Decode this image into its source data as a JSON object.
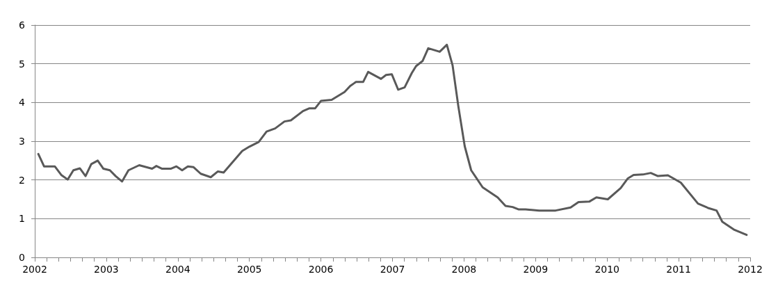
{
  "chart_data": {
    "type": "line",
    "xlim": [
      2002,
      2012
    ],
    "xticks": [
      2002,
      2003,
      2004,
      2005,
      2006,
      2007,
      2008,
      2009,
      2010,
      2011,
      2012
    ],
    "ylim": [
      0,
      6
    ],
    "yticks": [
      0,
      1,
      2,
      3,
      4,
      5,
      6
    ],
    "grid": "y",
    "marker": "none",
    "line_style": "solid",
    "series": [
      {
        "color": "#595959",
        "x": [
          2002.05,
          2002.13,
          2002.28,
          2002.37,
          2002.46,
          2002.54,
          2002.63,
          2002.71,
          2002.79,
          2002.88,
          2002.96,
          2003.05,
          2003.13,
          2003.22,
          2003.31,
          2003.46,
          2003.64,
          2003.7,
          2003.78,
          2003.9,
          2003.98,
          2004.06,
          2004.14,
          2004.22,
          2004.32,
          2004.46,
          2004.56,
          2004.64,
          2004.77,
          2004.9,
          2005.0,
          2005.13,
          2005.24,
          2005.36,
          2005.49,
          2005.58,
          2005.75,
          2005.84,
          2005.92,
          2006.0,
          2006.15,
          2006.33,
          2006.41,
          2006.49,
          2006.59,
          2006.66,
          2006.84,
          2006.91,
          2006.99,
          2007.08,
          2007.17,
          2007.27,
          2007.33,
          2007.42,
          2007.5,
          2007.66,
          2007.76,
          2007.84,
          2007.92,
          2008.01,
          2008.1,
          2008.26,
          2008.47,
          2008.58,
          2008.68,
          2008.76,
          2008.86,
          2009.05,
          2009.28,
          2009.49,
          2009.6,
          2009.75,
          2009.85,
          2010.01,
          2010.19,
          2010.29,
          2010.37,
          2010.5,
          2010.61,
          2010.71,
          2010.85,
          2011.03,
          2011.27,
          2011.42,
          2011.53,
          2011.61,
          2011.78,
          2011.95
        ],
        "values": [
          2.67,
          2.35,
          2.35,
          2.13,
          2.01,
          2.25,
          2.3,
          2.1,
          2.41,
          2.5,
          2.29,
          2.25,
          2.1,
          1.96,
          2.25,
          2.38,
          2.29,
          2.36,
          2.29,
          2.29,
          2.35,
          2.25,
          2.35,
          2.33,
          2.16,
          2.07,
          2.22,
          2.19,
          2.47,
          2.75,
          2.86,
          2.98,
          3.25,
          3.33,
          3.51,
          3.54,
          3.78,
          3.85,
          3.85,
          4.04,
          4.07,
          4.27,
          4.43,
          4.53,
          4.53,
          4.79,
          4.61,
          4.71,
          4.73,
          4.33,
          4.39,
          4.76,
          4.94,
          5.07,
          5.4,
          5.31,
          5.49,
          4.96,
          3.91,
          2.87,
          2.25,
          1.81,
          1.55,
          1.33,
          1.3,
          1.24,
          1.24,
          1.21,
          1.21,
          1.29,
          1.43,
          1.44,
          1.55,
          1.5,
          1.79,
          2.04,
          2.13,
          2.14,
          2.18,
          2.1,
          2.12,
          1.93,
          1.39,
          1.27,
          1.21,
          0.92,
          0.71,
          0.58
        ]
      }
    ]
  }
}
